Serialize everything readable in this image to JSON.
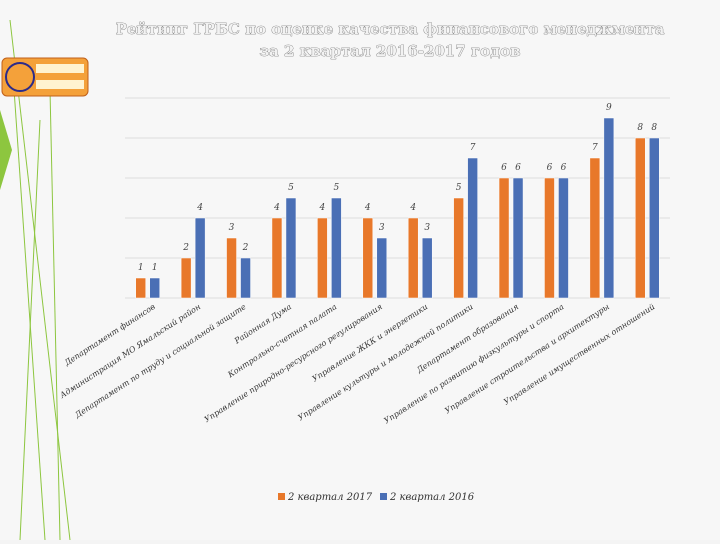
{
  "chart_data": {
    "type": "bar",
    "title": [
      "Рейтинг ГРБС по оценке качества финансового менеджмента",
      "за 2 квартал 2016-2017 годов"
    ],
    "categories": [
      "Департамент финансов",
      "Администрация МО Ямальский район",
      "Департамент по труду и социальной защите",
      "Районная Дума",
      "Контрольно-счетная палата",
      "Управление природно-ресурсного регулирования",
      "Управление ЖКК и энергетики",
      "Управление культуры и молодежной политики",
      "Департамент образования",
      "Управление по развитию физкультуры и спорта",
      "Управление строительства и архитектуры",
      "Управление имущественных отношений"
    ],
    "series": [
      {
        "name": "2 квартал 2017",
        "color": "#e8782a",
        "values": [
          1,
          2,
          3,
          4,
          4,
          4,
          4,
          5,
          6,
          6,
          7,
          8
        ]
      },
      {
        "name": "2 квартал 2016",
        "color": "#4a6fb5",
        "values": [
          1,
          4,
          2,
          5,
          5,
          3,
          3,
          7,
          6,
          6,
          9,
          8
        ]
      }
    ],
    "ylim": [
      0,
      10
    ],
    "yticks": [
      0,
      2,
      4,
      6,
      8,
      10
    ],
    "grid": true,
    "legend": "bottom"
  }
}
